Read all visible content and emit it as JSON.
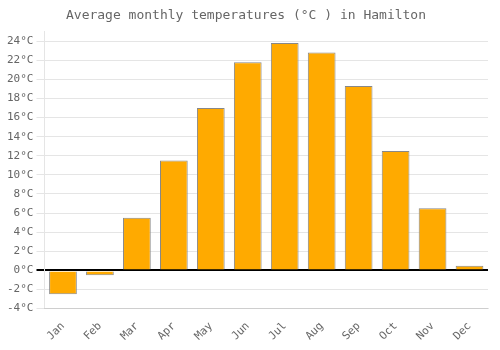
{
  "chart_data": {
    "type": "bar",
    "title": "Average monthly temperatures (°C ) in Hamilton",
    "categories": [
      "Jan",
      "Feb",
      "Mar",
      "Apr",
      "May",
      "Jun",
      "Jul",
      "Aug",
      "Sep",
      "Oct",
      "Nov",
      "Dec"
    ],
    "values": [
      -2.5,
      -0.5,
      5.5,
      11.5,
      17.0,
      21.8,
      23.8,
      22.8,
      19.3,
      12.5,
      6.5,
      0.5
    ],
    "color": "#FFAA00",
    "ylim": [
      -4,
      25
    ],
    "yticks": [
      {
        "value": -4,
        "label": "-4°C"
      },
      {
        "value": -2,
        "label": "-2°C"
      },
      {
        "value": 0,
        "label": "0°C"
      },
      {
        "value": 2,
        "label": "2°C"
      },
      {
        "value": 4,
        "label": "4°C"
      },
      {
        "value": 6,
        "label": "6°C"
      },
      {
        "value": 8,
        "label": "8°C"
      },
      {
        "value": 10,
        "label": "10°C"
      },
      {
        "value": 12,
        "label": "12°C"
      },
      {
        "value": 14,
        "label": "14°C"
      },
      {
        "value": 16,
        "label": "16°C"
      },
      {
        "value": 18,
        "label": "18°C"
      },
      {
        "value": 20,
        "label": "20°C"
      },
      {
        "value": 22,
        "label": "22°C"
      },
      {
        "value": 24,
        "label": "24°C"
      }
    ],
    "grid": true
  }
}
